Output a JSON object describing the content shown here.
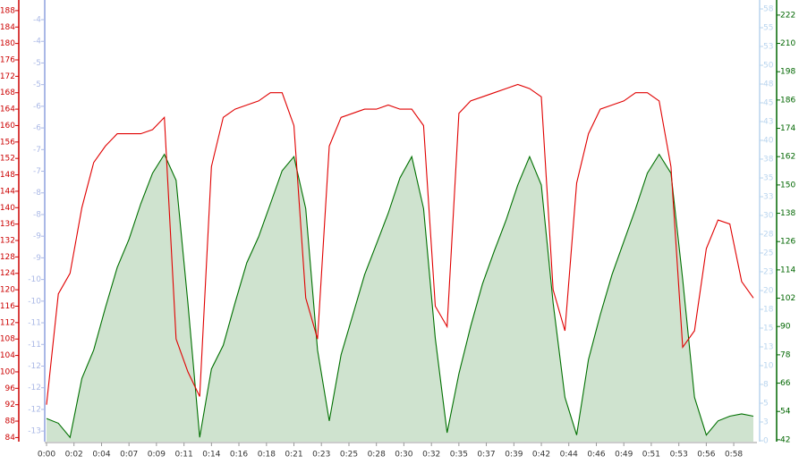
{
  "chart_data": {
    "type": "line",
    "x": [
      0,
      1,
      2,
      3,
      4,
      5,
      6,
      7,
      8,
      9,
      10,
      11,
      12,
      13,
      14,
      15,
      16,
      17,
      18,
      19,
      20,
      21,
      22,
      23,
      24,
      25,
      26,
      27,
      28,
      29,
      30,
      31,
      32,
      33,
      34,
      35,
      36,
      37,
      38,
      39,
      40,
      41,
      42,
      43,
      44,
      45,
      46,
      47,
      48,
      49,
      50,
      51,
      52,
      53,
      54,
      55,
      56,
      57,
      58,
      59,
      60
    ],
    "xlim": [
      0,
      60.3
    ],
    "xticks": [
      {
        "value": 0,
        "label": "0:00"
      },
      {
        "value": 2.33,
        "label": "0:02"
      },
      {
        "value": 4.67,
        "label": "0:04"
      },
      {
        "value": 7,
        "label": "0:07"
      },
      {
        "value": 9.33,
        "label": "0:09"
      },
      {
        "value": 11.67,
        "label": "0:11"
      },
      {
        "value": 14,
        "label": "0:14"
      },
      {
        "value": 16.33,
        "label": "0:16"
      },
      {
        "value": 18.67,
        "label": "0:18"
      },
      {
        "value": 21,
        "label": "0:21"
      },
      {
        "value": 23.33,
        "label": "0:23"
      },
      {
        "value": 25.67,
        "label": "0:25"
      },
      {
        "value": 28,
        "label": "0:28"
      },
      {
        "value": 30.33,
        "label": "0:30"
      },
      {
        "value": 32.67,
        "label": "0:32"
      },
      {
        "value": 35,
        "label": "0:35"
      },
      {
        "value": 37.33,
        "label": "0:37"
      },
      {
        "value": 39.67,
        "label": "0:39"
      },
      {
        "value": 42,
        "label": "0:42"
      },
      {
        "value": 44.33,
        "label": "0:44"
      },
      {
        "value": 46.67,
        "label": "0:46"
      },
      {
        "value": 49,
        "label": "0:49"
      },
      {
        "value": 51.33,
        "label": "0:51"
      },
      {
        "value": 53.67,
        "label": "0:53"
      },
      {
        "value": 56,
        "label": "0:56"
      },
      {
        "value": 58.33,
        "label": "0:58"
      }
    ],
    "ylim": [
      83,
      189.5
    ],
    "yticks": [
      84,
      88,
      92,
      96,
      100,
      104,
      108,
      112,
      116,
      120,
      124,
      128,
      132,
      136,
      140,
      144,
      148,
      152,
      156,
      160,
      164,
      168,
      172,
      176,
      180,
      184,
      188
    ],
    "y2lim": [
      41.2,
      226.5
    ],
    "y2ticks": [
      42,
      54,
      66,
      78,
      90,
      102,
      114,
      126,
      138,
      150,
      162,
      174,
      186,
      198,
      210,
      222
    ],
    "y3lim": [
      -13.16,
      -3.67
    ],
    "y3ticks": [
      -4,
      {
        "value": -4.47,
        "label": "-4"
      },
      {
        "value": -4.94,
        "label": "-5"
      },
      {
        "value": -5.41,
        "label": "-5"
      },
      {
        "value": -5.88,
        "label": "-6"
      },
      {
        "value": -6.35,
        "label": "-6"
      },
      {
        "value": -6.82,
        "label": "-7"
      },
      {
        "value": -7.29,
        "label": "-7"
      },
      {
        "value": -7.76,
        "label": "-8"
      },
      {
        "value": -8.23,
        "label": "-8"
      },
      {
        "value": -8.7,
        "label": "-9"
      },
      {
        "value": -9.17,
        "label": "-9"
      },
      {
        "value": -9.64,
        "label": "-10"
      },
      {
        "value": -10.11,
        "label": "-10"
      },
      {
        "value": -10.58,
        "label": "-11"
      },
      {
        "value": -11.05,
        "label": "-11"
      },
      {
        "value": -11.52,
        "label": "-12"
      },
      {
        "value": -11.99,
        "label": "-12"
      },
      {
        "value": -12.46,
        "label": "-12"
      },
      {
        "value": -12.93,
        "label": "-13"
      }
    ],
    "y4lim": [
      -0.12,
      58.6
    ],
    "y4ticks": [
      0,
      {
        "value": 2.52,
        "label": "3"
      },
      {
        "value": 5.04,
        "label": "5"
      },
      {
        "value": 7.57,
        "label": "8"
      },
      {
        "value": 10.09,
        "label": "10"
      },
      {
        "value": 12.61,
        "label": "13"
      },
      {
        "value": 15.13,
        "label": "15"
      },
      {
        "value": 17.65,
        "label": "18"
      },
      {
        "value": 20.17,
        "label": "20"
      },
      {
        "value": 22.7,
        "label": "23"
      },
      {
        "value": 25.22,
        "label": "25"
      },
      {
        "value": 27.74,
        "label": "28"
      },
      {
        "value": 30.26,
        "label": "30"
      },
      {
        "value": 32.78,
        "label": "33"
      },
      {
        "value": 35.3,
        "label": "35"
      },
      {
        "value": 37.83,
        "label": "38"
      },
      {
        "value": 40.35,
        "label": "40"
      },
      {
        "value": 42.87,
        "label": "43"
      },
      {
        "value": 45.39,
        "label": "45"
      },
      {
        "value": 47.91,
        "label": "48"
      },
      {
        "value": 50.43,
        "label": "50"
      },
      {
        "value": 52.96,
        "label": "53"
      },
      {
        "value": 55.48,
        "label": "55"
      },
      58
    ],
    "axis_colors": {
      "y": "#cc0000",
      "y2": "#006600",
      "y3": "#aab8e6",
      "y4": "#b8d4ee"
    },
    "series": [
      {
        "color": "#007000",
        "fill": "#cfe3cf",
        "axis": "y2",
        "values": [
          51,
          49,
          43,
          68,
          80,
          98,
          115,
          127,
          142,
          155,
          163,
          152,
          100,
          43,
          72,
          82,
          100,
          117,
          128,
          142,
          156,
          162,
          140,
          80,
          50,
          78,
          95,
          112,
          125,
          138,
          153,
          162,
          140,
          85,
          45,
          70,
          90,
          108,
          122,
          135,
          150,
          162,
          150,
          100,
          60,
          44,
          76,
          95,
          112,
          126,
          140,
          155,
          163,
          155,
          110,
          60,
          44,
          50,
          52,
          53,
          52
        ]
      },
      {
        "color": "#e00000",
        "axis": "y",
        "values": [
          92,
          119,
          124,
          140,
          151,
          155,
          158,
          158,
          158,
          159,
          162,
          108,
          100,
          94,
          150,
          162,
          164,
          165,
          166,
          168,
          168,
          160,
          118,
          108,
          155,
          162,
          163,
          164,
          164,
          165,
          164,
          164,
          160,
          116,
          111,
          163,
          166,
          167,
          168,
          169,
          170,
          169,
          167,
          120,
          110,
          146,
          158,
          164,
          165,
          166,
          168,
          168,
          166,
          150,
          106,
          110,
          130,
          137,
          136,
          122,
          118
        ]
      }
    ]
  }
}
